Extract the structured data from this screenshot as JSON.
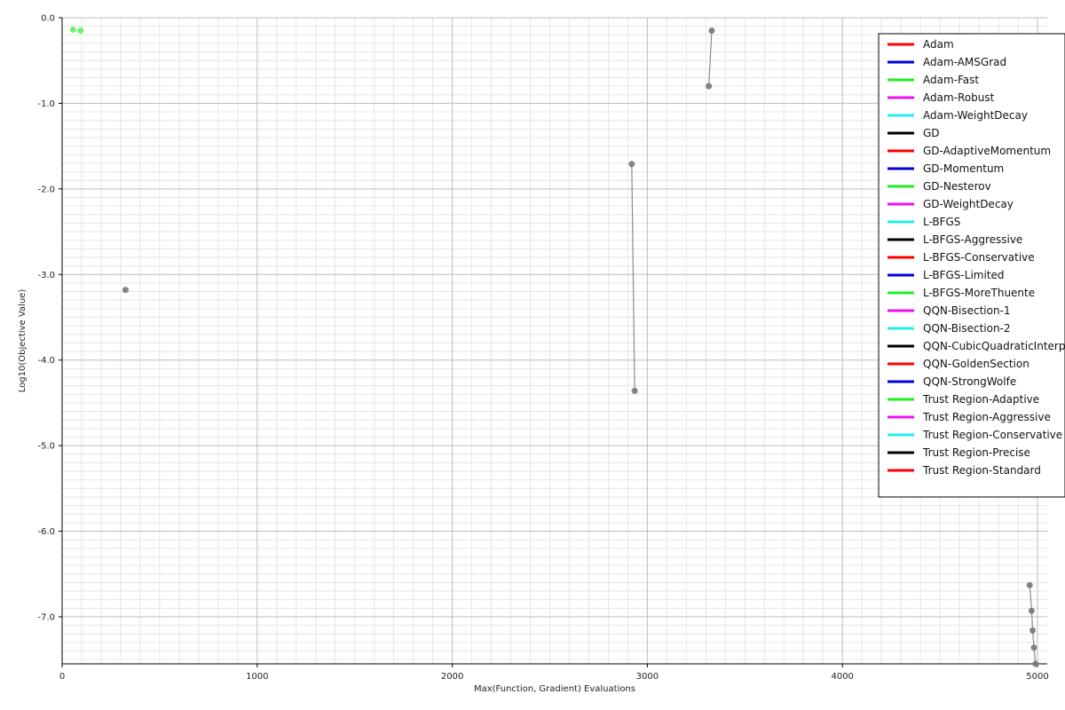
{
  "chart_data": {
    "type": "line",
    "title": "",
    "xlabel": "Max(Function, Gradient) Evaluations",
    "ylabel": "Log10(Objective Value)",
    "xlim": [
      0,
      5050
    ],
    "ylim": [
      -7.55,
      0.0
    ],
    "x_ticks": [
      0,
      1000,
      2000,
      3000,
      4000,
      5000
    ],
    "y_ticks": [
      0.0,
      -1.0,
      -2.0,
      -3.0,
      -4.0,
      -5.0,
      -6.0,
      -7.0
    ],
    "x_tick_labels": [
      "0",
      "1000",
      "2000",
      "3000",
      "4000",
      "5000"
    ],
    "y_tick_labels": [
      "0.0",
      "-1.0",
      "-2.0",
      "-3.0",
      "-4.0",
      "-5.0",
      "-6.0",
      "-7.0"
    ],
    "grid": true,
    "legend_position": "top-right",
    "legend": [
      {
        "name": "Adam",
        "color": "#ff0000"
      },
      {
        "name": "Adam-AMSGrad",
        "color": "#0000dd"
      },
      {
        "name": "Adam-Fast",
        "color": "#22ee22"
      },
      {
        "name": "Adam-Robust",
        "color": "#ee11ee"
      },
      {
        "name": "Adam-WeightDecay",
        "color": "#22f0f0"
      },
      {
        "name": "GD",
        "color": "#000000"
      },
      {
        "name": "GD-AdaptiveMomentum",
        "color": "#ff0000"
      },
      {
        "name": "GD-Momentum",
        "color": "#0000dd"
      },
      {
        "name": "GD-Nesterov",
        "color": "#22ee22"
      },
      {
        "name": "GD-WeightDecay",
        "color": "#ee11ee"
      },
      {
        "name": "L-BFGS",
        "color": "#22f0f0"
      },
      {
        "name": "L-BFGS-Aggressive",
        "color": "#000000"
      },
      {
        "name": "L-BFGS-Conservative",
        "color": "#ff0000"
      },
      {
        "name": "L-BFGS-Limited",
        "color": "#0000dd"
      },
      {
        "name": "L-BFGS-MoreThuente",
        "color": "#22ee22"
      },
      {
        "name": "QQN-Bisection-1",
        "color": "#ee11ee"
      },
      {
        "name": "QQN-Bisection-2",
        "color": "#22f0f0"
      },
      {
        "name": "QQN-CubicQuadraticInterpolation",
        "color": "#000000"
      },
      {
        "name": "QQN-GoldenSection",
        "color": "#ff0000"
      },
      {
        "name": "QQN-StrongWolfe",
        "color": "#0000dd"
      },
      {
        "name": "Trust Region-Adaptive",
        "color": "#22ee22"
      },
      {
        "name": "Trust Region-Aggressive",
        "color": "#ee11ee"
      },
      {
        "name": "Trust Region-Conservative",
        "color": "#22f0f0"
      },
      {
        "name": "Trust Region-Precise",
        "color": "#000000"
      },
      {
        "name": "Trust Region-Standard",
        "color": "#ff0000"
      }
    ],
    "series": [
      {
        "color": "#66ee66",
        "x": [
          55,
          95
        ],
        "y": [
          -0.14,
          -0.15
        ]
      },
      {
        "color": "#777777",
        "x": [
          325
        ],
        "y": [
          -3.18
        ]
      },
      {
        "color": "#777777",
        "x": [
          2920,
          2935
        ],
        "y": [
          -1.71,
          -4.36
        ]
      },
      {
        "color": "#777777",
        "x": [
          3315,
          3330
        ],
        "y": [
          -0.8,
          -0.15
        ]
      },
      {
        "color": "#777777",
        "x": [
          4960,
          4970,
          4975,
          4982,
          4990
        ],
        "y": [
          -6.63,
          -6.93,
          -7.16,
          -7.36,
          -7.55
        ]
      }
    ]
  }
}
